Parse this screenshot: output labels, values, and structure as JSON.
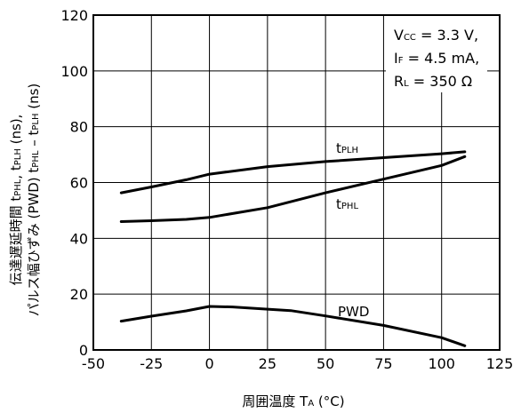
{
  "chart_data": {
    "type": "line",
    "xlabel": "周囲温度 T",
    "xlabel_sub": "A",
    "xlabel_unit": " (°C)",
    "ylabel_line1": {
      "prefix": "伝達遅延時間  t",
      "s1": "PHL",
      "mid1": ", t",
      "s2": "PLH",
      "suffix": " (ns),"
    },
    "ylabel_line2": {
      "prefix": "パルス幅ひずみ (PWD)  t",
      "s1": "PHL",
      "mid1": " – t",
      "s2": "PLH",
      "suffix": " (ns)"
    },
    "xlim": [
      -50,
      125
    ],
    "ylim": [
      0,
      120
    ],
    "x_ticks": [
      "-50",
      "-25",
      "0",
      "25",
      "50",
      "75",
      "100",
      "125"
    ],
    "y_ticks": [
      "0",
      "20",
      "40",
      "60",
      "80",
      "100",
      "120"
    ],
    "grid": true,
    "conditions": [
      {
        "main": "V",
        "sub": "CC",
        "rest": " = 3.3 V,"
      },
      {
        "main": "I",
        "sub": "F",
        "rest": " = 4.5 mA,"
      },
      {
        "main": "R",
        "sub": "L",
        "rest": " = 350 Ω"
      }
    ],
    "series": [
      {
        "name": "tPLH",
        "label_main": "t",
        "label_sub": "PLH",
        "x": [
          -38,
          -25,
          -10,
          0,
          25,
          50,
          75,
          100,
          110
        ],
        "y": [
          56.3,
          58.4,
          61.0,
          63.0,
          65.7,
          67.5,
          68.9,
          70.3,
          71.0
        ]
      },
      {
        "name": "tPHL",
        "label_main": "t",
        "label_sub": "PHL",
        "x": [
          -38,
          -25,
          -10,
          0,
          25,
          50,
          75,
          100,
          110
        ],
        "y": [
          46.0,
          46.3,
          46.8,
          47.5,
          51.0,
          56.3,
          61.2,
          66.1,
          69.3
        ]
      },
      {
        "name": "PWD",
        "label_main": "PWD",
        "label_sub": "",
        "x": [
          -38,
          -25,
          -10,
          -5,
          0,
          10,
          25,
          35,
          50,
          75,
          100,
          110
        ],
        "y": [
          10.3,
          12.1,
          14.0,
          14.8,
          15.6,
          15.4,
          14.6,
          14.1,
          12.2,
          8.8,
          4.4,
          1.5
        ]
      }
    ]
  }
}
